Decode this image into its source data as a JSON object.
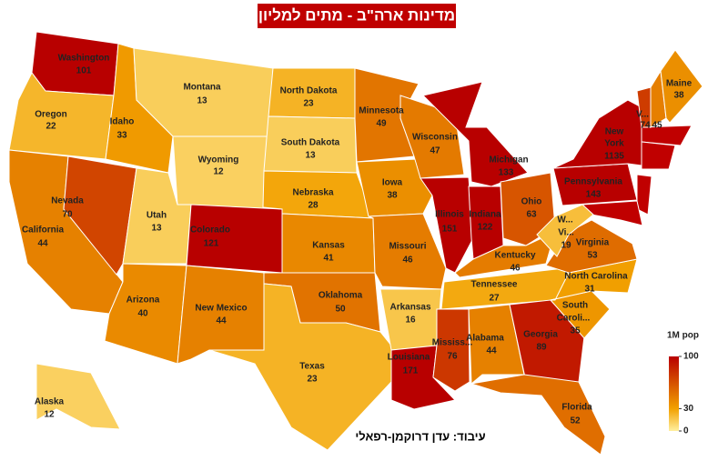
{
  "title": "מדינות ארה\"ב - מתים למליון",
  "credit": "עיבוד: עדן דרוקמן-רפאלי",
  "legend": {
    "title": "1M pop",
    "ticks": [
      100,
      30,
      0
    ],
    "colors": [
      "#b80000",
      "#f2a100",
      "#fff0a0"
    ]
  },
  "states": [
    {
      "name": "Washington",
      "value": 101
    },
    {
      "name": "Oregon",
      "value": 22
    },
    {
      "name": "California",
      "value": 44
    },
    {
      "name": "Nevada",
      "value": 70
    },
    {
      "name": "Idaho",
      "value": 33
    },
    {
      "name": "Montana",
      "value": 13
    },
    {
      "name": "Wyoming",
      "value": 12
    },
    {
      "name": "Utah",
      "value": 13
    },
    {
      "name": "Colorado",
      "value": 121
    },
    {
      "name": "Arizona",
      "value": 40
    },
    {
      "name": "New Mexico",
      "value": 44
    },
    {
      "name": "North Dakota",
      "value": 23
    },
    {
      "name": "South Dakota",
      "value": 13
    },
    {
      "name": "Nebraska",
      "value": 28
    },
    {
      "name": "Kansas",
      "value": 41
    },
    {
      "name": "Oklahoma",
      "value": 50
    },
    {
      "name": "Texas",
      "value": 23
    },
    {
      "name": "Minnesota",
      "value": 49
    },
    {
      "name": "Iowa",
      "value": 38
    },
    {
      "name": "Missouri",
      "value": 46
    },
    {
      "name": "Arkansas",
      "value": 16
    },
    {
      "name": "Louisiana",
      "value": 171
    },
    {
      "name": "Wisconsin",
      "value": 47
    },
    {
      "name": "Illinois",
      "value": 151
    },
    {
      "name": "Michigan",
      "value": 133
    },
    {
      "name": "Indiana",
      "value": 122
    },
    {
      "name": "Ohio",
      "value": 63
    },
    {
      "name": "Kentucky",
      "value": 46
    },
    {
      "name": "Tennessee",
      "value": 27
    },
    {
      "name": "Mississ...",
      "value": 76
    },
    {
      "name": "Alabama",
      "value": 44
    },
    {
      "name": "Georgia",
      "value": 89
    },
    {
      "name": "Florida",
      "value": 52
    },
    {
      "name": [
        "South",
        "Caroli..."
      ],
      "value": 35
    },
    {
      "name": "North Carolina",
      "value": 31
    },
    {
      "name": "Virginia",
      "value": 53
    },
    {
      "name": [
        "W...",
        "Vi..."
      ],
      "value": 19
    },
    {
      "name": "Pennsylvania",
      "value": 143
    },
    {
      "name": [
        "New",
        "York"
      ],
      "value": 1135
    },
    {
      "name": "V...",
      "value": 74
    },
    {
      "value": 45
    },
    {
      "name": "Maine",
      "value": 38
    },
    {
      "name": "Alaska",
      "value": 12
    }
  ]
}
